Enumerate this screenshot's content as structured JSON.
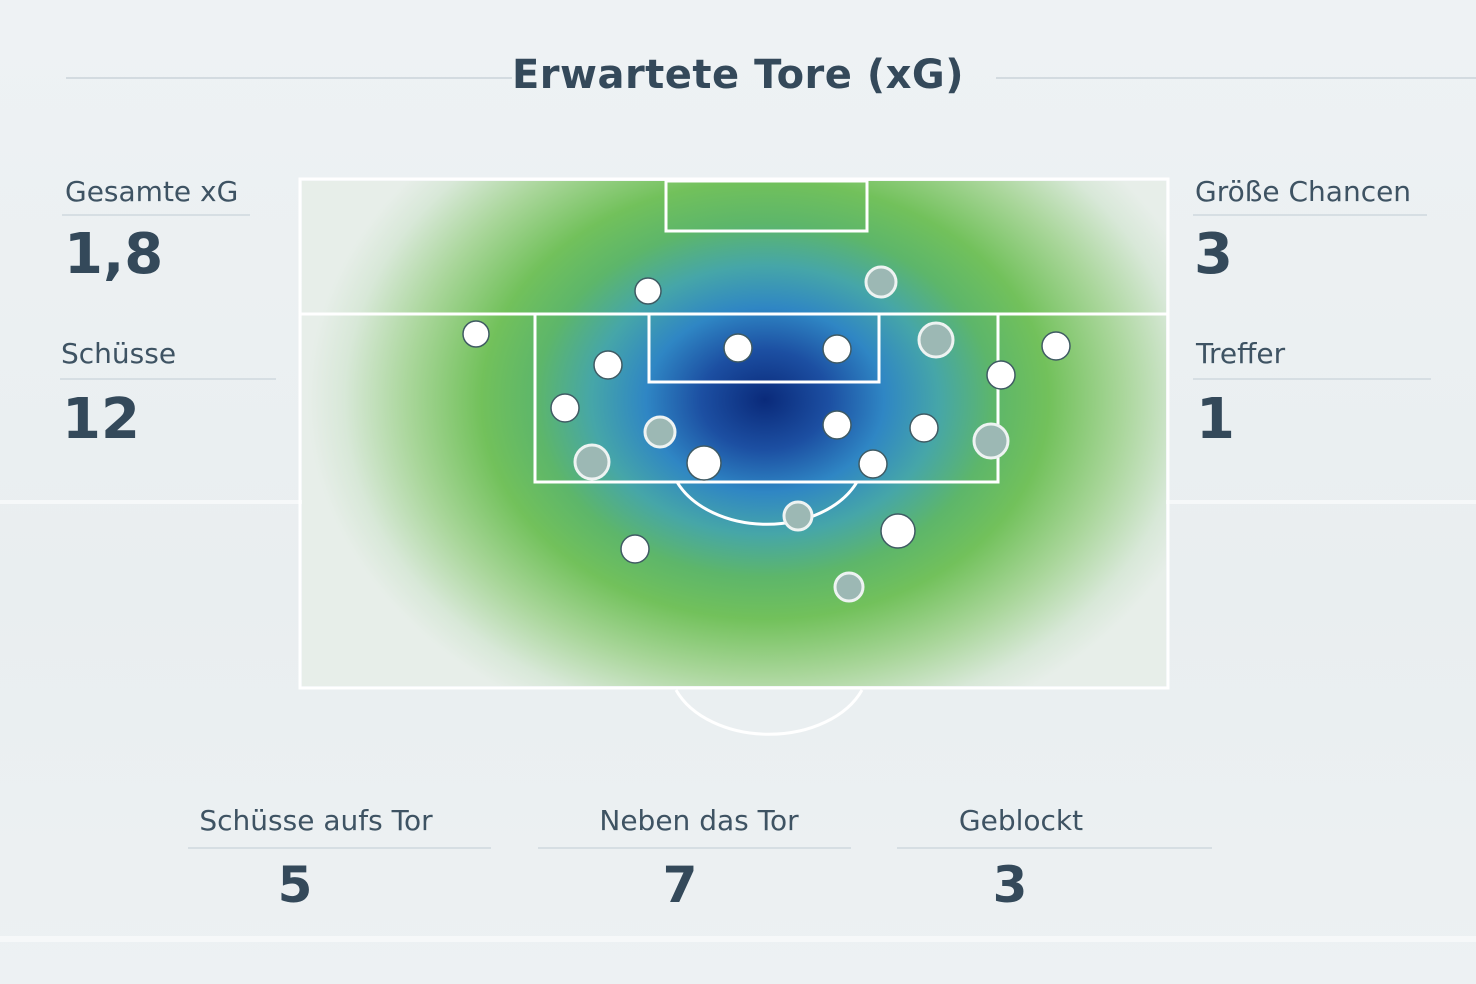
{
  "header": {
    "title": "Erwartete Tore (xG)"
  },
  "stats_left": [
    {
      "label": "Gesamte xG",
      "value": "1,8"
    },
    {
      "label": "Schüsse",
      "value": "12"
    }
  ],
  "stats_right": [
    {
      "label": "Größe Chancen",
      "value": "3"
    },
    {
      "label": "Treffer",
      "value": "1"
    }
  ],
  "stats_bottom": [
    {
      "label": "Schüsse aufs Tor",
      "value": "5"
    },
    {
      "label": "Neben das Tor",
      "value": "7"
    },
    {
      "label": "Geblockt",
      "value": "3"
    }
  ],
  "colors": {
    "heat_high": "#0a2a7a",
    "heat_mid": "#2f86c4",
    "heat_low": "#62b857",
    "shot_marker": "#ffffff",
    "shot_marker_muted": "#9cb8b4"
  },
  "shot_markers": [
    {
      "type": "white"
    },
    {
      "type": "muted"
    },
    {
      "type": "white"
    },
    {
      "type": "white"
    },
    {
      "type": "white"
    },
    {
      "type": "muted"
    },
    {
      "type": "white"
    },
    {
      "type": "white"
    },
    {
      "type": "white"
    },
    {
      "type": "white"
    },
    {
      "type": "white"
    },
    {
      "type": "muted"
    },
    {
      "type": "white"
    },
    {
      "type": "muted"
    },
    {
      "type": "muted"
    },
    {
      "type": "white"
    },
    {
      "type": "white"
    },
    {
      "type": "muted"
    },
    {
      "type": "white"
    },
    {
      "type": "white"
    },
    {
      "type": "muted"
    }
  ]
}
